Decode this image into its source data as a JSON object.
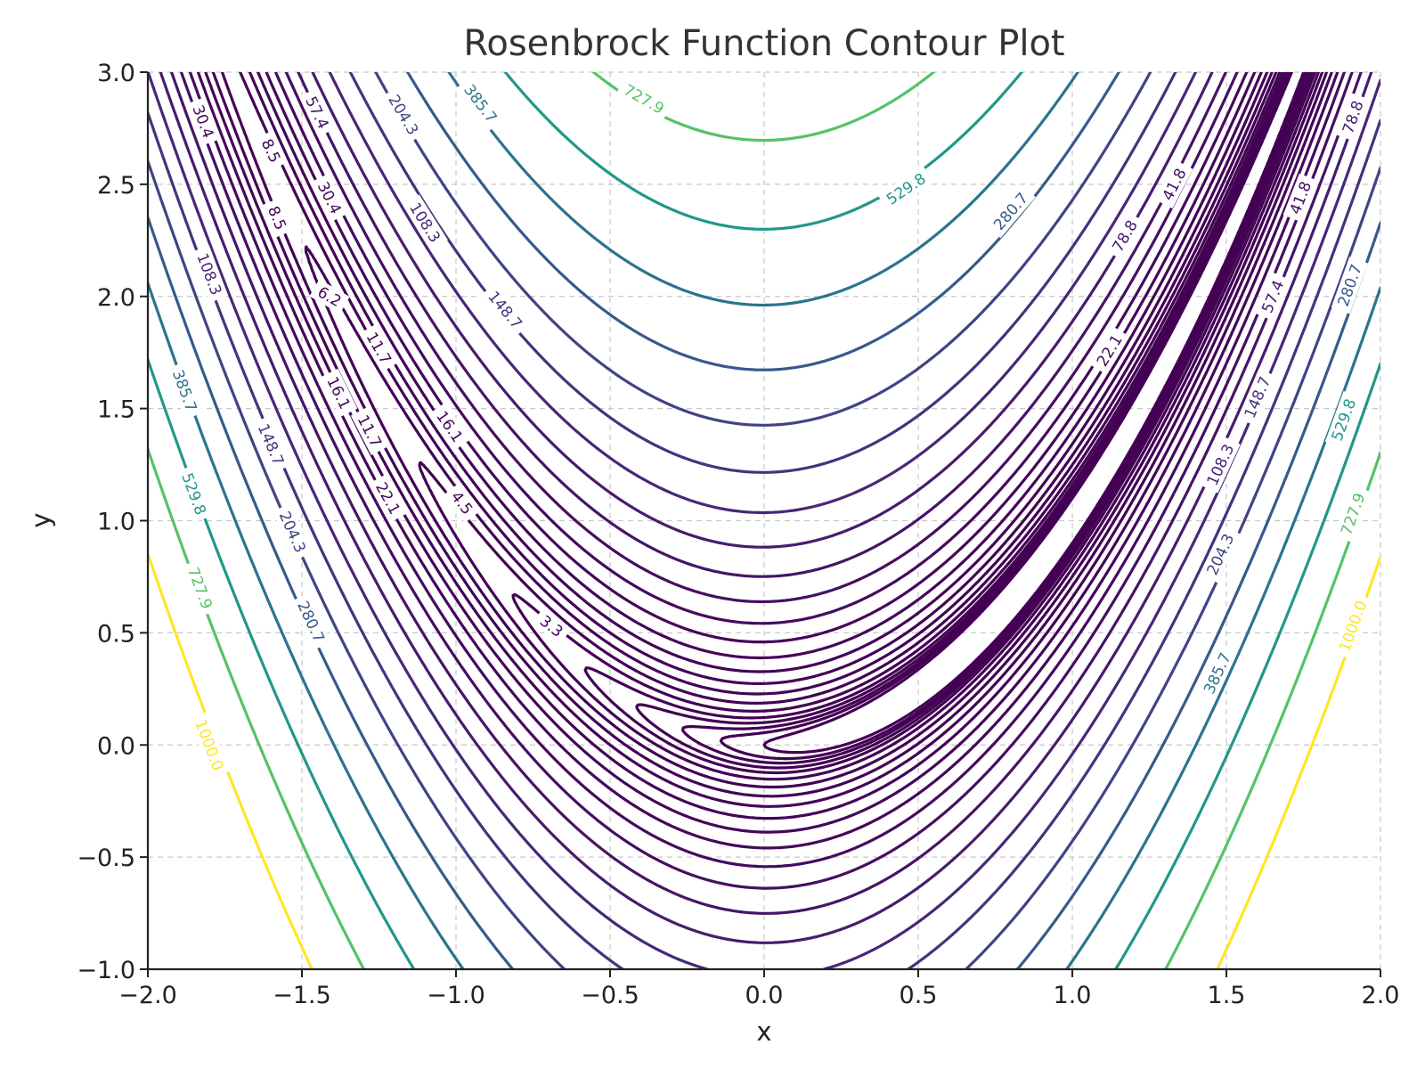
{
  "chart_data": {
    "type": "contour",
    "title": "Rosenbrock Function Contour Plot",
    "xlabel": "x",
    "ylabel": "y",
    "xlim": [
      -2.0,
      2.0
    ],
    "ylim": [
      -1.0,
      3.0
    ],
    "x_ticks": [
      -2.0,
      -1.5,
      -1.0,
      -0.5,
      0.0,
      0.5,
      1.0,
      1.5,
      2.0
    ],
    "x_tick_labels": [
      "−2.0",
      "−1.5",
      "−1.0",
      "−0.5",
      "0.0",
      "0.5",
      "1.0",
      "1.5",
      "2.0"
    ],
    "y_ticks": [
      -1.0,
      -0.5,
      0.0,
      0.5,
      1.0,
      1.5,
      2.0,
      2.5,
      3.0
    ],
    "y_tick_labels": [
      "−1.0",
      "−0.5",
      "0.0",
      "0.5",
      "1.0",
      "1.5",
      "2.0",
      "2.5",
      "3.0"
    ],
    "grid": true,
    "colormap": "viridis",
    "function": "f(x, y) = (1 - x)^2 + 100 (y - x^2)^2",
    "levels": [
      1.0,
      1.3,
      1.6,
      2.0,
      2.5,
      3.3,
      4.5,
      6.2,
      8.5,
      11.7,
      16.1,
      22.1,
      30.4,
      41.8,
      57.4,
      78.8,
      108.3,
      148.7,
      204.3,
      280.7,
      385.7,
      529.8,
      727.9,
      1000.0
    ],
    "contour_labels": [
      {
        "level": 1000.0,
        "text": "1000.0",
        "x": -1.8,
        "y": 0.0
      },
      {
        "level": 727.9,
        "text": "727.9",
        "x": -1.83,
        "y": 0.7
      },
      {
        "level": 529.8,
        "text": "529.8",
        "x": -1.85,
        "y": 1.12
      },
      {
        "level": 385.7,
        "text": "385.7",
        "x": -1.88,
        "y": 1.58
      },
      {
        "level": 108.3,
        "text": "108.3",
        "x": -1.8,
        "y": 2.1
      },
      {
        "level": 30.4,
        "text": "30.4",
        "x": -1.82,
        "y": 2.78
      },
      {
        "level": 148.7,
        "text": "148.7",
        "x": -1.6,
        "y": 1.34
      },
      {
        "level": 204.3,
        "text": "204.3",
        "x": -1.53,
        "y": 0.95
      },
      {
        "level": 280.7,
        "text": "280.7",
        "x": -1.47,
        "y": 0.55
      },
      {
        "level": 8.5,
        "text": "8.5",
        "x": -1.6,
        "y": 2.65
      },
      {
        "level": 8.5,
        "text": "8.5",
        "x": -1.58,
        "y": 2.35
      },
      {
        "level": 57.4,
        "text": "57.4",
        "x": -1.45,
        "y": 2.82
      },
      {
        "level": 30.4,
        "text": "30.4",
        "x": -1.41,
        "y": 2.44
      },
      {
        "level": 6.2,
        "text": "6.2",
        "x": -1.41,
        "y": 2.0
      },
      {
        "level": 16.1,
        "text": "16.1",
        "x": -1.38,
        "y": 1.57
      },
      {
        "level": 11.7,
        "text": "11.7",
        "x": -1.25,
        "y": 1.77
      },
      {
        "level": 11.7,
        "text": "11.7",
        "x": -1.28,
        "y": 1.4
      },
      {
        "level": 22.1,
        "text": "22.1",
        "x": -1.22,
        "y": 1.1
      },
      {
        "level": 16.1,
        "text": "16.1",
        "x": -1.02,
        "y": 1.42
      },
      {
        "level": 4.5,
        "text": "4.5",
        "x": -0.98,
        "y": 1.08
      },
      {
        "level": 3.3,
        "text": "3.3",
        "x": -0.69,
        "y": 0.53
      },
      {
        "level": 204.3,
        "text": "204.3",
        "x": -1.17,
        "y": 2.81
      },
      {
        "level": 108.3,
        "text": "108.3",
        "x": -1.1,
        "y": 2.33
      },
      {
        "level": 148.7,
        "text": "148.7",
        "x": -0.84,
        "y": 1.94
      },
      {
        "level": 385.7,
        "text": "385.7",
        "x": -0.92,
        "y": 2.86
      },
      {
        "level": 727.9,
        "text": "727.9",
        "x": -0.39,
        "y": 2.88
      },
      {
        "level": 529.8,
        "text": "529.8",
        "x": 0.46,
        "y": 2.48
      },
      {
        "level": 280.7,
        "text": "280.7",
        "x": 0.8,
        "y": 2.38
      },
      {
        "level": 78.8,
        "text": "78.8",
        "x": 1.17,
        "y": 2.27
      },
      {
        "level": 41.8,
        "text": "41.8",
        "x": 1.33,
        "y": 2.5
      },
      {
        "level": 22.1,
        "text": "22.1",
        "x": 1.12,
        "y": 1.76
      },
      {
        "level": 41.8,
        "text": "41.8",
        "x": 1.74,
        "y": 2.44
      },
      {
        "level": 57.4,
        "text": "57.4",
        "x": 1.65,
        "y": 2.0
      },
      {
        "level": 78.8,
        "text": "78.8",
        "x": 1.91,
        "y": 2.8
      },
      {
        "level": 280.7,
        "text": "280.7",
        "x": 1.9,
        "y": 2.05
      },
      {
        "level": 148.7,
        "text": "148.7",
        "x": 1.6,
        "y": 1.55
      },
      {
        "level": 529.8,
        "text": "529.8",
        "x": 1.88,
        "y": 1.45
      },
      {
        "level": 108.3,
        "text": "108.3",
        "x": 1.48,
        "y": 1.25
      },
      {
        "level": 727.9,
        "text": "727.9",
        "x": 1.91,
        "y": 1.03
      },
      {
        "level": 204.3,
        "text": "204.3",
        "x": 1.48,
        "y": 0.85
      },
      {
        "level": 1000.0,
        "text": "1000.0",
        "x": 1.91,
        "y": 0.53
      },
      {
        "level": 385.7,
        "text": "385.7",
        "x": 1.47,
        "y": 0.32
      }
    ]
  }
}
